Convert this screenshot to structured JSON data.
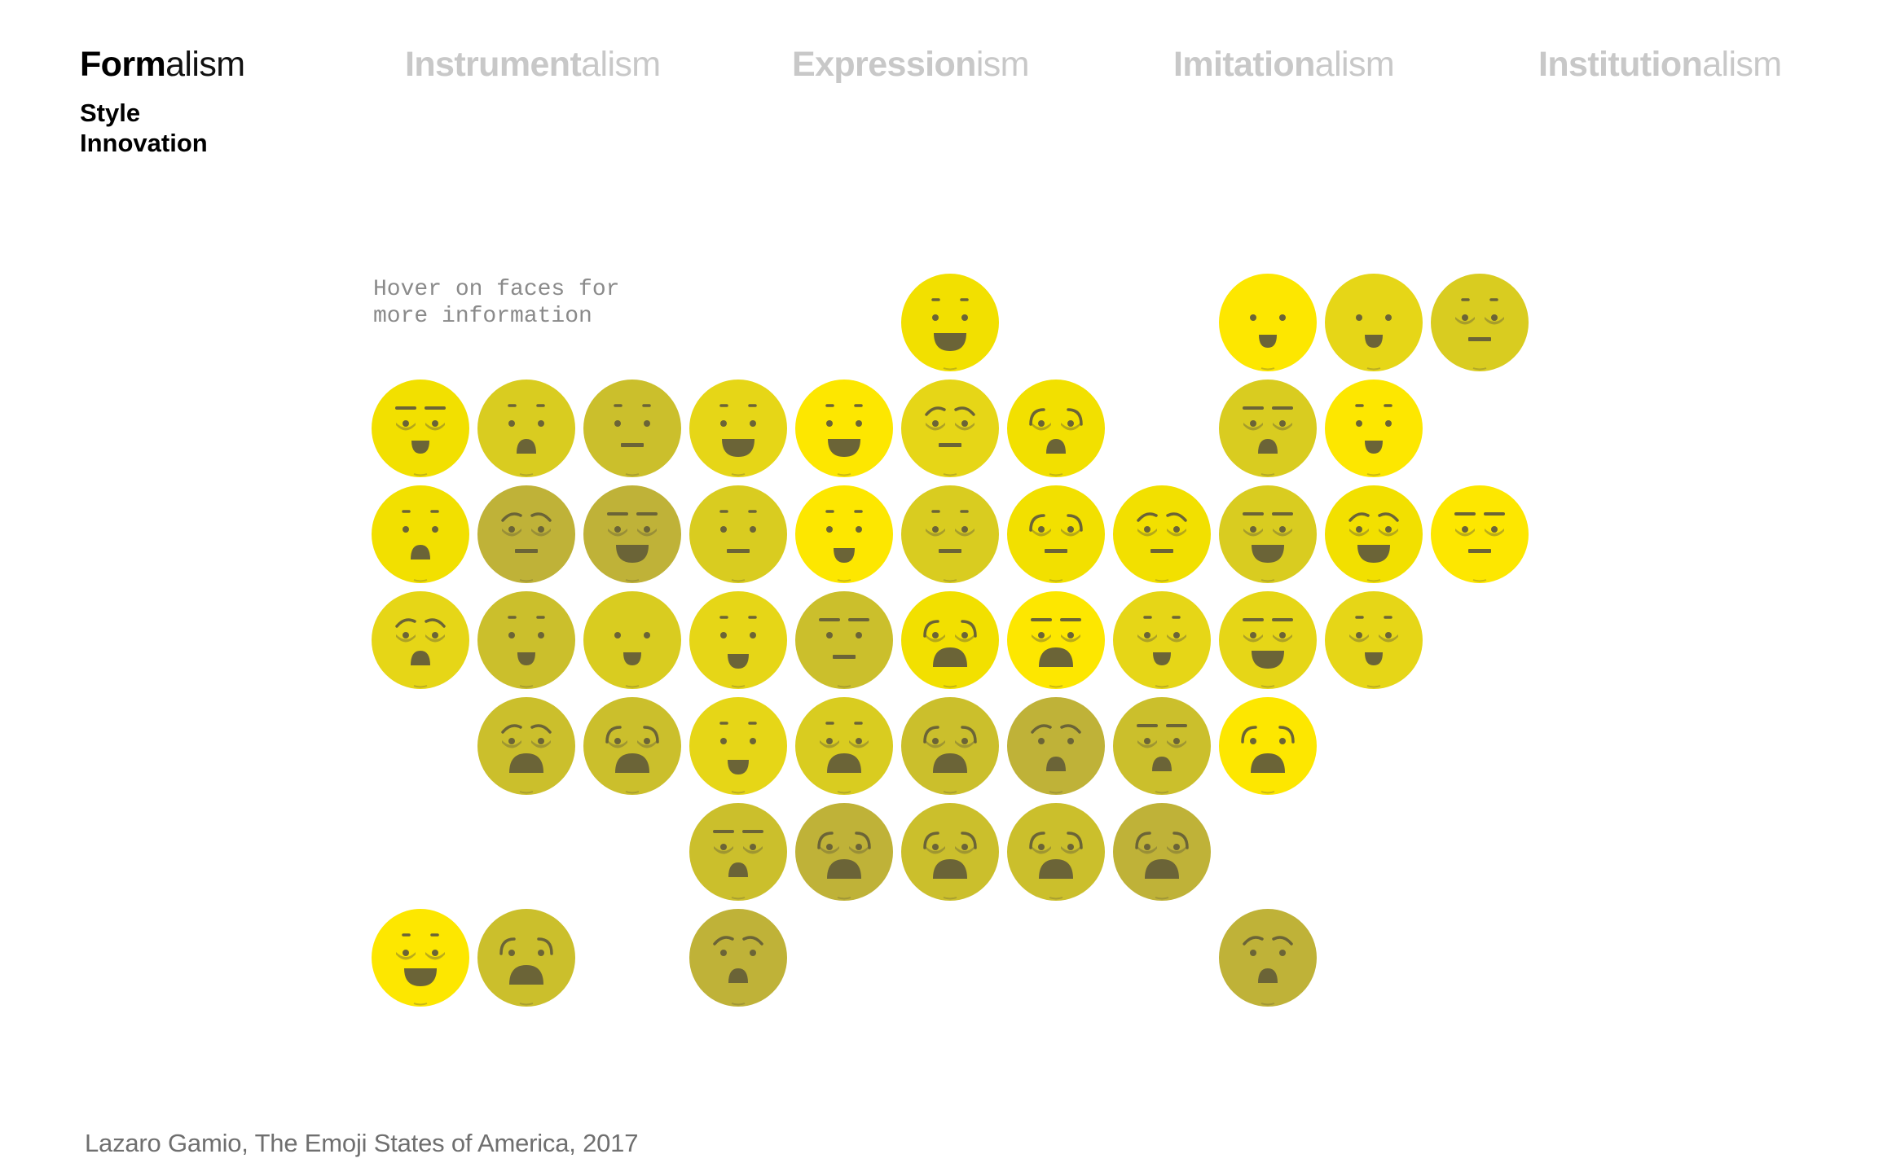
{
  "nav": [
    {
      "strong": "Form",
      "rest": "alism",
      "active": true
    },
    {
      "strong": "Instrument",
      "rest": "alism",
      "active": false
    },
    {
      "strong": "Expression",
      "rest": "ism",
      "active": false
    },
    {
      "strong": "Imitation",
      "rest": "alism",
      "active": false
    },
    {
      "strong": "Institution",
      "rest": "alism",
      "active": false
    }
  ],
  "subnav": [
    "Style",
    "Innovation"
  ],
  "hint": "Hover on faces for\nmore information",
  "credit": "Lazaro Gamio, The Emoji States of America, 2017",
  "colors": {
    "feature": "#6b6437",
    "tone_scale": [
      "#fde700",
      "#f2e000",
      "#e6d617",
      "#d9cc20",
      "#cbbf2c",
      "#bfb238"
    ]
  },
  "faces": [
    {
      "row": 0,
      "col": 5,
      "tone": 1,
      "brow": "dash",
      "eyes": "dot",
      "mouth": "big-grin",
      "lids": false
    },
    {
      "row": 0,
      "col": 8,
      "tone": 0,
      "brow": "none",
      "eyes": "dot",
      "mouth": "grin",
      "lids": false
    },
    {
      "row": 0,
      "col": 9,
      "tone": 2,
      "brow": "none",
      "eyes": "dot",
      "mouth": "grin",
      "lids": false
    },
    {
      "row": 0,
      "col": 10,
      "tone": 3,
      "brow": "dash",
      "eyes": "dot",
      "mouth": "flat",
      "lids": true
    },
    {
      "row": 1,
      "col": 0,
      "tone": 1,
      "brow": "line",
      "eyes": "dot",
      "mouth": "grin",
      "lids": true
    },
    {
      "row": 1,
      "col": 1,
      "tone": 3,
      "brow": "dash",
      "eyes": "dot",
      "mouth": "open",
      "lids": false
    },
    {
      "row": 1,
      "col": 2,
      "tone": 4,
      "brow": "dash",
      "eyes": "dot",
      "mouth": "flat",
      "lids": false
    },
    {
      "row": 1,
      "col": 3,
      "tone": 2,
      "brow": "dash",
      "eyes": "dot",
      "mouth": "big-grin",
      "lids": false
    },
    {
      "row": 1,
      "col": 4,
      "tone": 0,
      "brow": "dash",
      "eyes": "dot",
      "mouth": "big-grin",
      "lids": false
    },
    {
      "row": 1,
      "col": 5,
      "tone": 2,
      "brow": "worried",
      "eyes": "dot",
      "mouth": "flat",
      "lids": true
    },
    {
      "row": 1,
      "col": 6,
      "tone": 1,
      "brow": "arc",
      "eyes": "dot",
      "mouth": "open",
      "lids": true
    },
    {
      "row": 1,
      "col": 8,
      "tone": 3,
      "brow": "line",
      "eyes": "dot",
      "mouth": "open",
      "lids": true
    },
    {
      "row": 1,
      "col": 9,
      "tone": 0,
      "brow": "dash",
      "eyes": "dot",
      "mouth": "grin",
      "lids": false
    },
    {
      "row": 2,
      "col": 0,
      "tone": 1,
      "brow": "dash",
      "eyes": "dot",
      "mouth": "open",
      "lids": false
    },
    {
      "row": 2,
      "col": 1,
      "tone": 5,
      "brow": "worried",
      "eyes": "dot",
      "mouth": "flat",
      "lids": true
    },
    {
      "row": 2,
      "col": 2,
      "tone": 5,
      "brow": "line",
      "eyes": "dot",
      "mouth": "big-grin",
      "lids": true
    },
    {
      "row": 2,
      "col": 3,
      "tone": 3,
      "brow": "dash",
      "eyes": "dot",
      "mouth": "flat",
      "lids": false
    },
    {
      "row": 2,
      "col": 4,
      "tone": 0,
      "brow": "dash",
      "eyes": "dot",
      "mouth": "smile",
      "lids": false
    },
    {
      "row": 2,
      "col": 5,
      "tone": 3,
      "brow": "dash",
      "eyes": "dot",
      "mouth": "flat",
      "lids": true
    },
    {
      "row": 2,
      "col": 6,
      "tone": 1,
      "brow": "arc",
      "eyes": "dot",
      "mouth": "flat",
      "lids": true
    },
    {
      "row": 2,
      "col": 7,
      "tone": 1,
      "brow": "worried",
      "eyes": "dot",
      "mouth": "flat",
      "lids": true
    },
    {
      "row": 2,
      "col": 8,
      "tone": 3,
      "brow": "line",
      "eyes": "dot",
      "mouth": "big-grin",
      "lids": true
    },
    {
      "row": 2,
      "col": 9,
      "tone": 1,
      "brow": "worried",
      "eyes": "dot",
      "mouth": "big-grin",
      "lids": true
    },
    {
      "row": 2,
      "col": 10,
      "tone": 0,
      "brow": "line",
      "eyes": "dot",
      "mouth": "flat",
      "lids": true
    },
    {
      "row": 3,
      "col": 0,
      "tone": 2,
      "brow": "worried",
      "eyes": "dot",
      "mouth": "open",
      "lids": true
    },
    {
      "row": 3,
      "col": 1,
      "tone": 4,
      "brow": "dash",
      "eyes": "dot",
      "mouth": "grin",
      "lids": false
    },
    {
      "row": 3,
      "col": 2,
      "tone": 3,
      "brow": "none",
      "eyes": "dot",
      "mouth": "grin",
      "lids": false
    },
    {
      "row": 3,
      "col": 3,
      "tone": 2,
      "brow": "dash",
      "eyes": "dot",
      "mouth": "smile",
      "lids": false
    },
    {
      "row": 3,
      "col": 4,
      "tone": 4,
      "brow": "line",
      "eyes": "dot",
      "mouth": "flat",
      "lids": false
    },
    {
      "row": 3,
      "col": 5,
      "tone": 1,
      "brow": "arc",
      "eyes": "dot",
      "mouth": "wide-open",
      "lids": true
    },
    {
      "row": 3,
      "col": 6,
      "tone": 0,
      "brow": "line",
      "eyes": "dot",
      "mouth": "wide-open",
      "lids": true
    },
    {
      "row": 3,
      "col": 7,
      "tone": 2,
      "brow": "dash",
      "eyes": "dot",
      "mouth": "grin",
      "lids": true
    },
    {
      "row": 3,
      "col": 8,
      "tone": 2,
      "brow": "line",
      "eyes": "dot",
      "mouth": "big-grin",
      "lids": true
    },
    {
      "row": 3,
      "col": 9,
      "tone": 2,
      "brow": "dash",
      "eyes": "dot",
      "mouth": "grin",
      "lids": true
    },
    {
      "row": 4,
      "col": 1,
      "tone": 4,
      "brow": "worried",
      "eyes": "dot",
      "mouth": "wide-open",
      "lids": true
    },
    {
      "row": 4,
      "col": 2,
      "tone": 4,
      "brow": "arc",
      "eyes": "dot",
      "mouth": "wide-open",
      "lids": true
    },
    {
      "row": 4,
      "col": 3,
      "tone": 2,
      "brow": "dash",
      "eyes": "dot",
      "mouth": "smile",
      "lids": false
    },
    {
      "row": 4,
      "col": 4,
      "tone": 3,
      "brow": "dash",
      "eyes": "dot",
      "mouth": "wide-open",
      "lids": true
    },
    {
      "row": 4,
      "col": 5,
      "tone": 4,
      "brow": "arc",
      "eyes": "dot",
      "mouth": "wide-open",
      "lids": true
    },
    {
      "row": 4,
      "col": 6,
      "tone": 5,
      "brow": "worried",
      "eyes": "dot",
      "mouth": "open",
      "lids": false
    },
    {
      "row": 4,
      "col": 7,
      "tone": 4,
      "brow": "line",
      "eyes": "dot",
      "mouth": "open",
      "lids": true
    },
    {
      "row": 4,
      "col": 8,
      "tone": 0,
      "brow": "arc",
      "eyes": "dot",
      "mouth": "wide-open",
      "lids": false
    },
    {
      "row": 5,
      "col": 3,
      "tone": 4,
      "brow": "line",
      "eyes": "dot",
      "mouth": "open",
      "lids": true
    },
    {
      "row": 5,
      "col": 4,
      "tone": 5,
      "brow": "arc",
      "eyes": "dot",
      "mouth": "wide-open",
      "lids": true
    },
    {
      "row": 5,
      "col": 5,
      "tone": 4,
      "brow": "arc",
      "eyes": "dot",
      "mouth": "wide-open",
      "lids": true
    },
    {
      "row": 5,
      "col": 6,
      "tone": 4,
      "brow": "arc",
      "eyes": "dot",
      "mouth": "wide-open",
      "lids": true
    },
    {
      "row": 5,
      "col": 7,
      "tone": 5,
      "brow": "arc",
      "eyes": "dot",
      "mouth": "wide-open",
      "lids": true
    },
    {
      "row": 6,
      "col": 0,
      "tone": 0,
      "brow": "dash",
      "eyes": "dot",
      "mouth": "big-grin",
      "lids": true
    },
    {
      "row": 6,
      "col": 1,
      "tone": 4,
      "brow": "arc",
      "eyes": "dot",
      "mouth": "wide-open",
      "lids": false
    },
    {
      "row": 6,
      "col": 3,
      "tone": 5,
      "brow": "worried",
      "eyes": "dot",
      "mouth": "open",
      "lids": false
    },
    {
      "row": 6,
      "col": 8,
      "tone": 5,
      "brow": "worried",
      "eyes": "dot",
      "mouth": "open",
      "lids": false
    }
  ]
}
